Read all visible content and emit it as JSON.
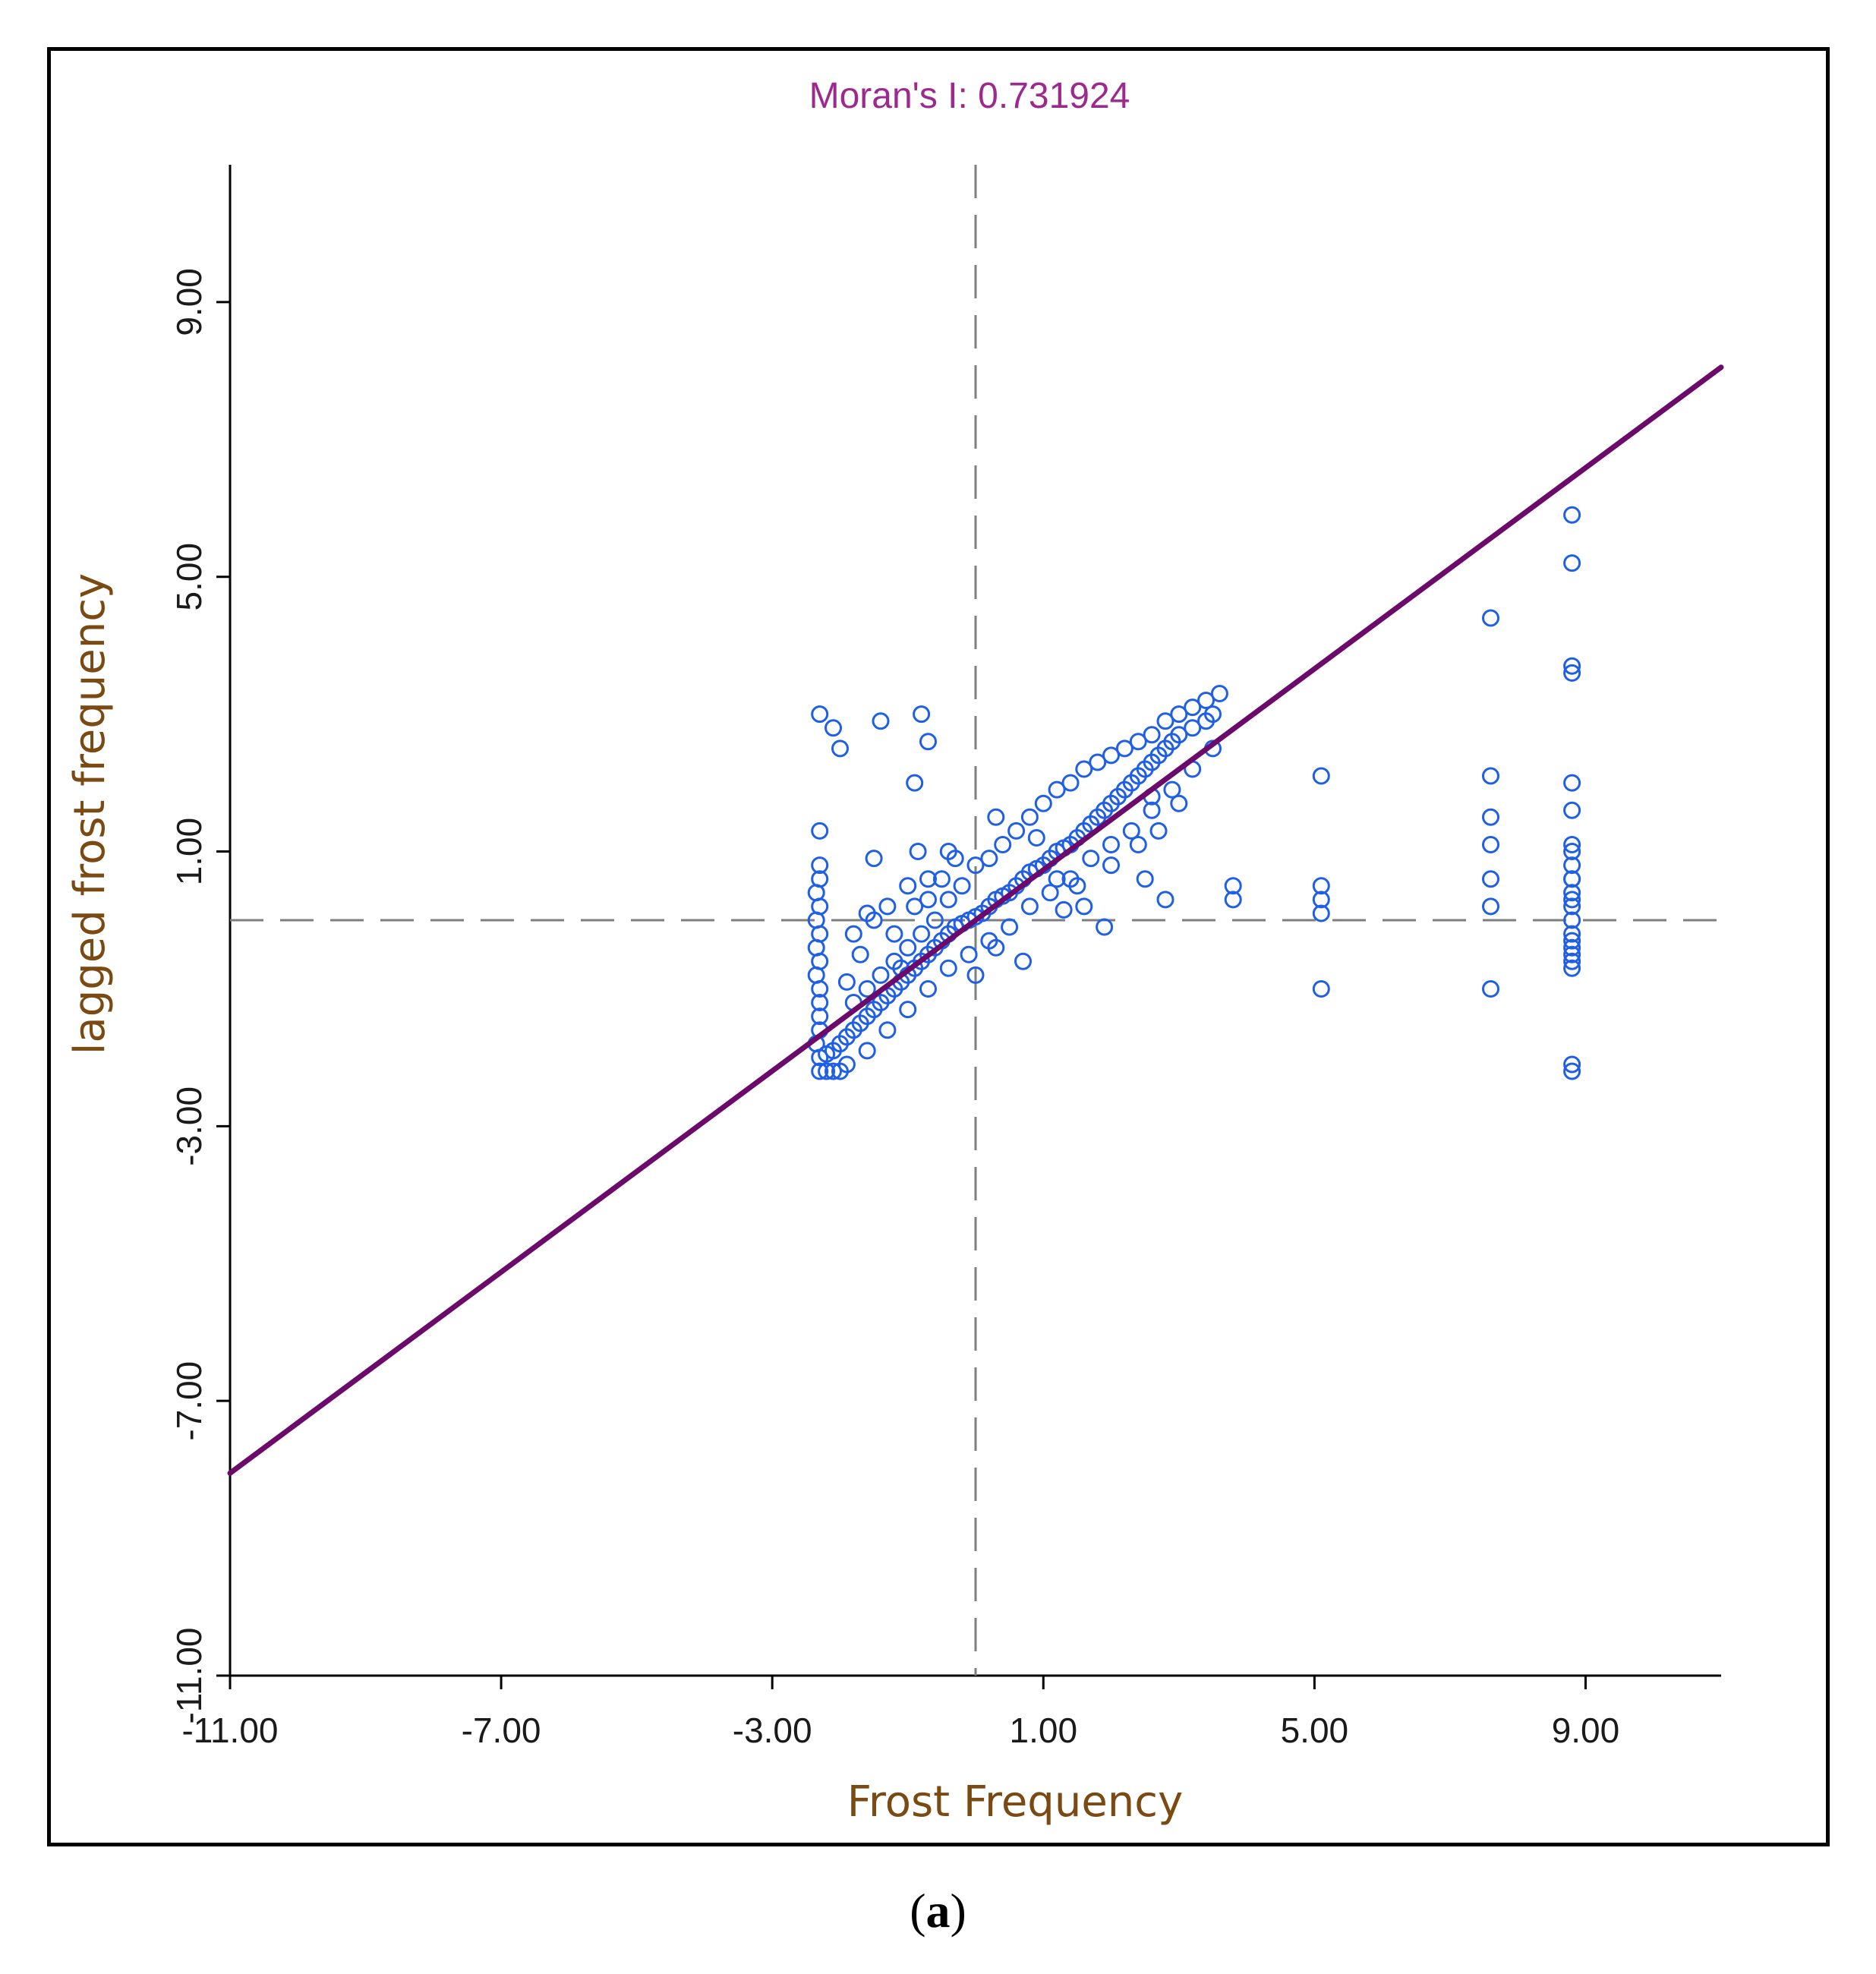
{
  "chart_data": {
    "type": "scatter",
    "title": "Moran's I: 0.731924",
    "xlabel": "Frost Frequency",
    "ylabel": "lagged frost frequency",
    "xlim": [
      -11,
      11
    ],
    "ylim": [
      -11,
      11
    ],
    "x_ticks": [
      -11,
      -7,
      -3,
      1,
      5,
      9
    ],
    "y_ticks": [
      -11,
      -7,
      -3,
      1,
      5,
      9
    ],
    "x_tick_labels": [
      "-11.00",
      "-7.00",
      "-3.00",
      "1.00",
      "5.00",
      "9.00"
    ],
    "y_tick_labels": [
      "-11.00",
      "-7.00",
      "-3.00",
      "1.00",
      "5.00",
      "9.00"
    ],
    "reference_lines": {
      "x_mean": 0,
      "y_mean": 0,
      "style": "dashed"
    },
    "regression_line": {
      "slope": 0.731924,
      "intercept": 0,
      "x_range": [
        -11,
        11
      ]
    },
    "series": [
      {
        "name": "observations",
        "points": [
          [
            -2.3,
            3.0
          ],
          [
            -2.1,
            2.8
          ],
          [
            -1.4,
            2.9
          ],
          [
            -0.8,
            3.0
          ],
          [
            -0.7,
            2.6
          ],
          [
            -2.0,
            2.5
          ],
          [
            -0.9,
            2.0
          ],
          [
            -2.3,
            1.3
          ],
          [
            -1.5,
            0.9
          ],
          [
            -0.85,
            1.0
          ],
          [
            -0.4,
            1.0
          ],
          [
            -0.7,
            0.6
          ],
          [
            -2.3,
            0.8
          ],
          [
            -2.3,
            0.6
          ],
          [
            -2.35,
            0.4
          ],
          [
            -2.3,
            0.2
          ],
          [
            -2.35,
            0.0
          ],
          [
            -2.3,
            -0.2
          ],
          [
            -2.35,
            -0.4
          ],
          [
            -2.3,
            -0.6
          ],
          [
            -2.35,
            -0.8
          ],
          [
            -2.3,
            -1.0
          ],
          [
            -2.3,
            -1.2
          ],
          [
            -2.3,
            -1.4
          ],
          [
            -2.3,
            -1.6
          ],
          [
            -2.35,
            -1.8
          ],
          [
            -2.3,
            -2.0
          ],
          [
            -2.3,
            -2.2
          ],
          [
            -2.2,
            -2.2
          ],
          [
            -2.1,
            -2.2
          ],
          [
            -2.0,
            -2.2
          ],
          [
            -2.2,
            -1.95
          ],
          [
            -2.1,
            -1.9
          ],
          [
            -2.0,
            -1.8
          ],
          [
            -1.9,
            -1.7
          ],
          [
            -1.8,
            -1.6
          ],
          [
            -1.7,
            -1.5
          ],
          [
            -1.6,
            -1.4
          ],
          [
            -1.5,
            -1.3
          ],
          [
            -1.4,
            -1.2
          ],
          [
            -1.3,
            -1.1
          ],
          [
            -1.2,
            -1.0
          ],
          [
            -1.1,
            -0.9
          ],
          [
            -1.0,
            -0.8
          ],
          [
            -0.9,
            -0.7
          ],
          [
            -0.8,
            -0.6
          ],
          [
            -0.7,
            -0.5
          ],
          [
            -0.6,
            -0.4
          ],
          [
            -0.5,
            -0.3
          ],
          [
            -0.4,
            -0.2
          ],
          [
            -0.3,
            -0.1
          ],
          [
            -0.2,
            -0.05
          ],
          [
            -0.1,
            0.0
          ],
          [
            0.0,
            0.05
          ],
          [
            0.1,
            0.1
          ],
          [
            0.2,
            0.2
          ],
          [
            0.3,
            0.3
          ],
          [
            0.4,
            0.35
          ],
          [
            0.5,
            0.4
          ],
          [
            0.6,
            0.5
          ],
          [
            0.7,
            0.6
          ],
          [
            0.8,
            0.7
          ],
          [
            0.9,
            0.75
          ],
          [
            1.0,
            0.8
          ],
          [
            1.1,
            0.9
          ],
          [
            1.2,
            1.0
          ],
          [
            1.3,
            1.05
          ],
          [
            1.4,
            1.1
          ],
          [
            1.5,
            1.2
          ],
          [
            1.6,
            1.3
          ],
          [
            1.7,
            1.4
          ],
          [
            1.8,
            1.5
          ],
          [
            1.9,
            1.6
          ],
          [
            2.0,
            1.7
          ],
          [
            2.1,
            1.8
          ],
          [
            2.2,
            1.9
          ],
          [
            2.3,
            2.0
          ],
          [
            2.4,
            2.1
          ],
          [
            2.5,
            2.2
          ],
          [
            2.6,
            2.3
          ],
          [
            2.7,
            2.4
          ],
          [
            2.8,
            2.5
          ],
          [
            2.9,
            2.6
          ],
          [
            3.0,
            2.7
          ],
          [
            3.2,
            2.8
          ],
          [
            3.4,
            2.9
          ],
          [
            3.5,
            3.0
          ],
          [
            -1.8,
            -1.2
          ],
          [
            -1.6,
            -1.0
          ],
          [
            -1.4,
            -0.8
          ],
          [
            -1.2,
            -0.6
          ],
          [
            -1.0,
            -0.4
          ],
          [
            -0.8,
            -0.2
          ],
          [
            -0.6,
            0.0
          ],
          [
            -0.4,
            0.3
          ],
          [
            -0.2,
            0.5
          ],
          [
            0.0,
            0.8
          ],
          [
            0.2,
            0.9
          ],
          [
            0.4,
            1.1
          ],
          [
            0.6,
            1.3
          ],
          [
            0.8,
            1.5
          ],
          [
            1.0,
            1.7
          ],
          [
            1.2,
            1.9
          ],
          [
            1.4,
            2.0
          ],
          [
            1.6,
            2.2
          ],
          [
            1.8,
            2.3
          ],
          [
            2.0,
            2.4
          ],
          [
            2.2,
            2.5
          ],
          [
            2.4,
            2.6
          ],
          [
            2.6,
            2.7
          ],
          [
            2.8,
            2.9
          ],
          [
            3.0,
            3.0
          ],
          [
            3.2,
            3.1
          ],
          [
            3.4,
            3.2
          ],
          [
            3.6,
            3.3
          ],
          [
            -1.9,
            -2.1
          ],
          [
            -1.6,
            -1.9
          ],
          [
            -1.3,
            -1.6
          ],
          [
            -1.0,
            -1.3
          ],
          [
            -0.7,
            -1.0
          ],
          [
            -0.4,
            -0.7
          ],
          [
            -0.1,
            -0.5
          ],
          [
            0.2,
            -0.3
          ],
          [
            0.5,
            -0.1
          ],
          [
            0.8,
            0.2
          ],
          [
            1.1,
            0.4
          ],
          [
            1.4,
            0.6
          ],
          [
            1.7,
            0.9
          ],
          [
            2.0,
            1.1
          ],
          [
            2.3,
            1.3
          ],
          [
            2.6,
            1.6
          ],
          [
            2.9,
            1.9
          ],
          [
            3.2,
            2.2
          ],
          [
            3.5,
            2.5
          ],
          [
            -1.0,
            0.5
          ],
          [
            -0.7,
            0.3
          ],
          [
            -1.3,
            0.2
          ],
          [
            -1.5,
            0.0
          ],
          [
            -1.2,
            -0.2
          ],
          [
            -0.9,
            0.2
          ],
          [
            -0.5,
            0.6
          ],
          [
            -1.8,
            -0.2
          ],
          [
            -1.7,
            -0.5
          ],
          [
            -1.6,
            0.1
          ],
          [
            -1.9,
            -0.9
          ],
          [
            -1.1,
            -0.7
          ],
          [
            -0.3,
            0.9
          ],
          [
            0.3,
            1.5
          ],
          [
            0.9,
            1.2
          ],
          [
            1.2,
            0.6
          ],
          [
            1.5,
            0.5
          ],
          [
            2.0,
            0.8
          ],
          [
            2.5,
            0.6
          ],
          [
            2.8,
            0.3
          ],
          [
            1.6,
            0.2
          ],
          [
            1.9,
            -0.1
          ],
          [
            1.3,
            0.15
          ],
          [
            0.7,
            -0.6
          ],
          [
            0.0,
            -0.8
          ],
          [
            0.3,
            -0.4
          ],
          [
            2.7,
            1.3
          ],
          [
            2.4,
            1.1
          ],
          [
            3.0,
            1.7
          ],
          [
            2.6,
            1.8
          ],
          [
            3.8,
            0.5
          ],
          [
            3.8,
            0.3
          ],
          [
            5.1,
            2.1
          ],
          [
            5.1,
            0.5
          ],
          [
            5.1,
            0.3
          ],
          [
            5.1,
            0.1
          ],
          [
            5.1,
            -1.0
          ],
          [
            7.6,
            4.4
          ],
          [
            7.6,
            2.1
          ],
          [
            7.6,
            1.5
          ],
          [
            7.6,
            1.1
          ],
          [
            7.6,
            0.6
          ],
          [
            7.6,
            0.2
          ],
          [
            7.6,
            -1.0
          ],
          [
            8.8,
            5.9
          ],
          [
            8.8,
            5.2
          ],
          [
            8.8,
            3.7
          ],
          [
            8.8,
            3.6
          ],
          [
            8.8,
            2.0
          ],
          [
            8.8,
            1.6
          ],
          [
            8.8,
            1.1
          ],
          [
            8.8,
            0.6
          ],
          [
            8.8,
            0.3
          ],
          [
            8.8,
            1.0
          ],
          [
            8.8,
            0.8
          ],
          [
            8.8,
            0.6
          ],
          [
            8.8,
            0.4
          ],
          [
            8.8,
            0.2
          ],
          [
            8.8,
            0.0
          ],
          [
            8.8,
            -0.2
          ],
          [
            8.8,
            -0.3
          ],
          [
            8.8,
            -0.4
          ],
          [
            8.8,
            -0.5
          ],
          [
            8.8,
            -0.6
          ],
          [
            8.8,
            -0.7
          ],
          [
            8.8,
            -2.1
          ],
          [
            8.8,
            -2.2
          ]
        ]
      }
    ],
    "colors": {
      "points": "#1f5fe8",
      "regression": "#6b0a6b",
      "reference": "#7f7f7f",
      "title": "#9b2a8c",
      "axis_label": "#7a4a12"
    }
  },
  "caption": {
    "open": "(",
    "letter": "a",
    "close": ")"
  }
}
